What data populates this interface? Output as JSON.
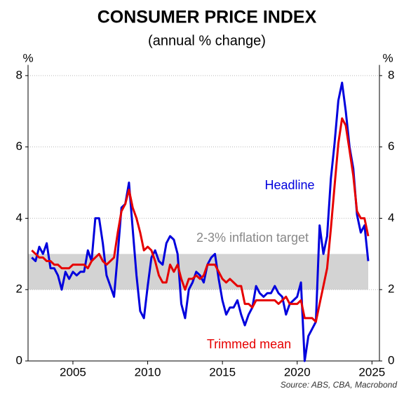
{
  "chart_data": {
    "type": "line",
    "title": "CONSUMER PRICE INDEX",
    "subtitle": "(annual % change)",
    "y_unit_left": "%",
    "y_unit_right": "%",
    "source": "Source: ABS, CBA, Macrobond",
    "target_band": {
      "label": "2-3% inflation target",
      "range": [
        2,
        3
      ],
      "color": "#d3d3d3"
    },
    "x": [
      2002.25,
      2002.5,
      2002.75,
      2003,
      2003.25,
      2003.5,
      2003.75,
      2004,
      2004.25,
      2004.5,
      2004.75,
      2005,
      2005.25,
      2005.5,
      2005.75,
      2006,
      2006.25,
      2006.5,
      2006.75,
      2007,
      2007.25,
      2007.5,
      2007.75,
      2008,
      2008.25,
      2008.5,
      2008.75,
      2009,
      2009.25,
      2009.5,
      2009.75,
      2010,
      2010.25,
      2010.5,
      2010.75,
      2011,
      2011.25,
      2011.5,
      2011.75,
      2012,
      2012.25,
      2012.5,
      2012.75,
      2013,
      2013.25,
      2013.5,
      2013.75,
      2014,
      2014.25,
      2014.5,
      2014.75,
      2015,
      2015.25,
      2015.5,
      2015.75,
      2016,
      2016.25,
      2016.5,
      2016.75,
      2017,
      2017.25,
      2017.5,
      2017.75,
      2018,
      2018.25,
      2018.5,
      2018.75,
      2019,
      2019.25,
      2019.5,
      2019.75,
      2020,
      2020.25,
      2020.5,
      2020.75,
      2021,
      2021.25,
      2021.5,
      2021.75,
      2022,
      2022.25,
      2022.5,
      2022.75,
      2023,
      2023.25,
      2023.5,
      2023.75,
      2024,
      2024.25,
      2024.5,
      2024.75
    ],
    "series": [
      {
        "name": "Headline",
        "color": "#0000dd",
        "values": [
          2.9,
          2.8,
          3.2,
          3.0,
          3.3,
          2.6,
          2.6,
          2.4,
          2.0,
          2.5,
          2.3,
          2.5,
          2.4,
          2.5,
          2.5,
          3.1,
          2.8,
          4.0,
          4.0,
          3.3,
          2.4,
          2.1,
          1.8,
          3.0,
          4.3,
          4.4,
          5.0,
          3.7,
          2.4,
          1.4,
          1.2,
          2.1,
          2.9,
          3.1,
          2.8,
          2.7,
          3.3,
          3.5,
          3.4,
          3.0,
          1.6,
          1.2,
          2.0,
          2.2,
          2.5,
          2.4,
          2.2,
          2.7,
          2.9,
          3.0,
          2.3,
          1.7,
          1.3,
          1.5,
          1.5,
          1.7,
          1.3,
          1.0,
          1.3,
          1.5,
          2.1,
          1.9,
          1.8,
          1.9,
          1.9,
          2.1,
          1.9,
          1.8,
          1.3,
          1.6,
          1.7,
          1.8,
          2.2,
          0,
          0.7,
          0.9,
          1.1,
          3.8,
          3.0,
          3.5,
          5.1,
          6.1,
          7.3,
          7.8,
          7.0,
          6.0,
          5.4,
          4.1,
          3.6,
          3.8,
          2.8
        ]
      },
      {
        "name": "Trimmed mean",
        "color": "#e60000",
        "values": [
          3.1,
          3.0,
          2.9,
          2.9,
          2.8,
          2.8,
          2.7,
          2.7,
          2.6,
          2.6,
          2.6,
          2.7,
          2.7,
          2.7,
          2.7,
          2.6,
          2.8,
          2.9,
          3.0,
          2.8,
          2.7,
          2.8,
          2.9,
          3.6,
          4.2,
          4.4,
          4.8,
          4.3,
          4.0,
          3.6,
          3.1,
          3.2,
          3.1,
          2.8,
          2.4,
          2.2,
          2.2,
          2.7,
          2.5,
          2.7,
          2.3,
          2.0,
          2.3,
          2.3,
          2.4,
          2.3,
          2.4,
          2.7,
          2.7,
          2.7,
          2.5,
          2.3,
          2.2,
          2.3,
          2.2,
          2.1,
          2.1,
          1.6,
          1.6,
          1.5,
          1.7,
          1.7,
          1.7,
          1.7,
          1.7,
          1.7,
          1.6,
          1.7,
          1.8,
          1.6,
          1.6,
          1.6,
          1.7,
          1.2,
          1.2,
          1.2,
          1.1,
          1.6,
          2.1,
          2.6,
          3.7,
          4.9,
          6.1,
          6.8,
          6.6,
          5.9,
          5.2,
          4.2,
          4.0,
          4.0,
          3.5
        ]
      }
    ],
    "xlim": [
      2002,
      2025.5
    ],
    "xticks": [
      2005,
      2010,
      2015,
      2020,
      2025
    ],
    "ylim": [
      0,
      8.3
    ],
    "yticks": [
      0,
      2,
      4,
      6,
      8
    ],
    "grid": true
  }
}
